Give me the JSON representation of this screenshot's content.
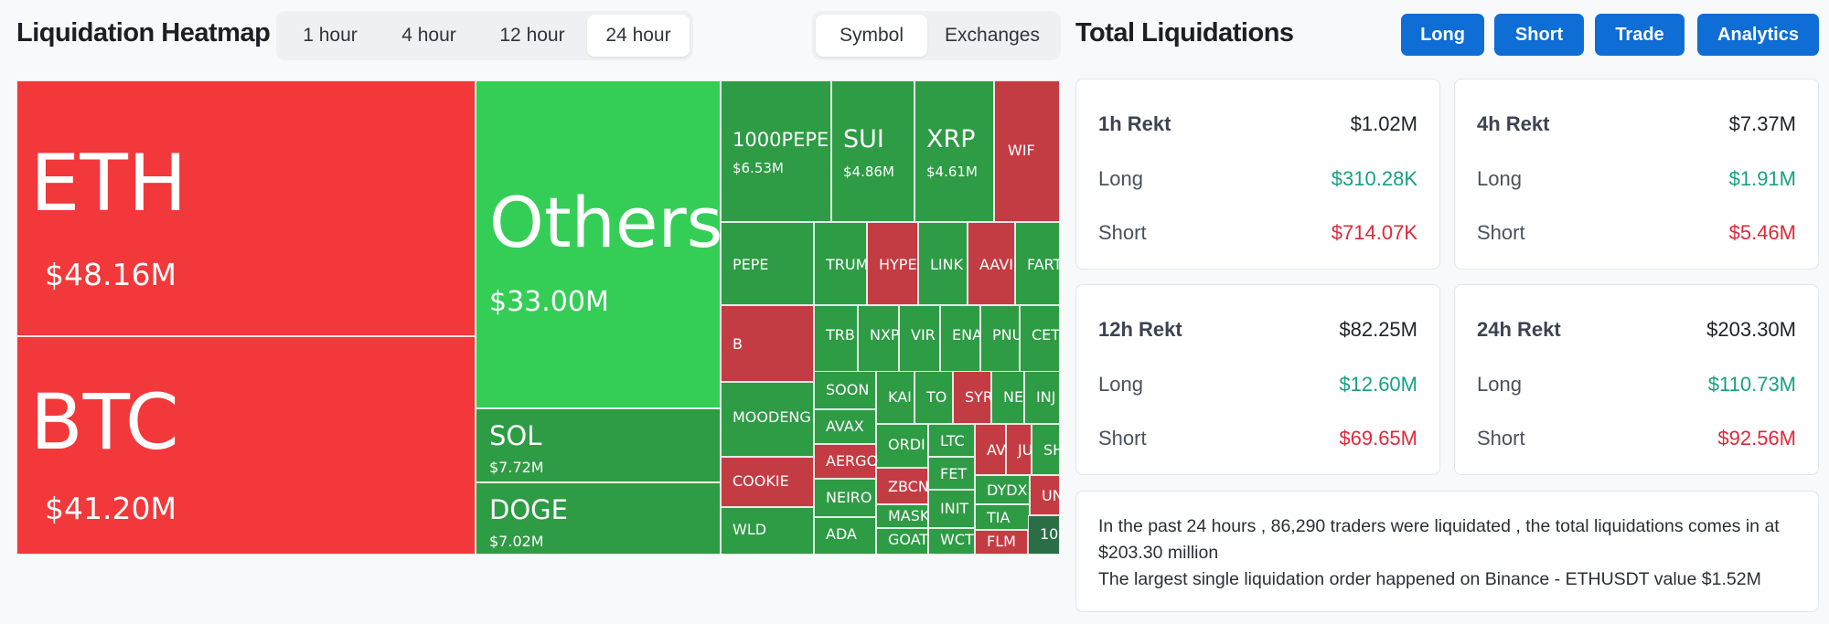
{
  "header": {
    "title": "Liquidation Heatmap",
    "time_tabs": [
      "1 hour",
      "4 hour",
      "12 hour",
      "24 hour"
    ],
    "active_time_tab": "24 hour",
    "view_tabs": [
      "Symbol",
      "Exchanges"
    ],
    "active_view_tab": "Symbol"
  },
  "heatmap": {
    "cells": [
      {
        "symbol": "ETH",
        "value": "$48.16M"
      },
      {
        "symbol": "BTC",
        "value": "$41.20M"
      },
      {
        "symbol": "Others",
        "value": "$33.00M"
      },
      {
        "symbol": "SOL",
        "value": "$7.72M"
      },
      {
        "symbol": "DOGE",
        "value": "$7.02M"
      },
      {
        "symbol": "1000PEPE",
        "value": "$6.53M"
      },
      {
        "symbol": "SUI",
        "value": "$4.86M"
      },
      {
        "symbol": "XRP",
        "value": "$4.61M"
      },
      {
        "symbol": "WIF",
        "value": ""
      },
      {
        "symbol": "PEPE",
        "value": ""
      },
      {
        "symbol": "TRUM",
        "value": ""
      },
      {
        "symbol": "HYPE",
        "value": ""
      },
      {
        "symbol": "LINK",
        "value": ""
      },
      {
        "symbol": "AAVI",
        "value": ""
      },
      {
        "symbol": "FART",
        "value": ""
      },
      {
        "symbol": "B",
        "value": ""
      },
      {
        "symbol": "TRB",
        "value": ""
      },
      {
        "symbol": "NXP",
        "value": ""
      },
      {
        "symbol": "VIR",
        "value": ""
      },
      {
        "symbol": "ENA",
        "value": ""
      },
      {
        "symbol": "PNU",
        "value": ""
      },
      {
        "symbol": "CET",
        "value": ""
      },
      {
        "symbol": "MOODENG",
        "value": ""
      },
      {
        "symbol": "SOON",
        "value": ""
      },
      {
        "symbol": "KAI",
        "value": ""
      },
      {
        "symbol": "TO",
        "value": ""
      },
      {
        "symbol": "SYR",
        "value": ""
      },
      {
        "symbol": "NE",
        "value": ""
      },
      {
        "symbol": "INJ",
        "value": ""
      },
      {
        "symbol": "AVAX",
        "value": ""
      },
      {
        "symbol": "ORDI",
        "value": ""
      },
      {
        "symbol": "LTC",
        "value": ""
      },
      {
        "symbol": "AV",
        "value": ""
      },
      {
        "symbol": "JU",
        "value": ""
      },
      {
        "symbol": "SH",
        "value": ""
      },
      {
        "symbol": "COOKIE",
        "value": ""
      },
      {
        "symbol": "AERGO",
        "value": ""
      },
      {
        "symbol": "ZBCN",
        "value": ""
      },
      {
        "symbol": "FET",
        "value": ""
      },
      {
        "symbol": "DYDX",
        "value": ""
      },
      {
        "symbol": "UN",
        "value": ""
      },
      {
        "symbol": "NEIRO",
        "value": ""
      },
      {
        "symbol": "MASK",
        "value": ""
      },
      {
        "symbol": "INIT",
        "value": ""
      },
      {
        "symbol": "TIA",
        "value": ""
      },
      {
        "symbol": "WLD",
        "value": ""
      },
      {
        "symbol": "ADA",
        "value": ""
      },
      {
        "symbol": "GOAT",
        "value": ""
      },
      {
        "symbol": "WCT",
        "value": ""
      },
      {
        "symbol": "FLM",
        "value": ""
      },
      {
        "symbol": "10",
        "value": ""
      }
    ]
  },
  "right": {
    "title": "Total Liquidations",
    "buttons": [
      "Long",
      "Short",
      "Trade",
      "Analytics"
    ],
    "cards": [
      {
        "title": "1h Rekt",
        "total": "$1.02M",
        "long_label": "Long",
        "long": "$310.28K",
        "short_label": "Short",
        "short": "$714.07K"
      },
      {
        "title": "4h Rekt",
        "total": "$7.37M",
        "long_label": "Long",
        "long": "$1.91M",
        "short_label": "Short",
        "short": "$5.46M"
      },
      {
        "title": "12h Rekt",
        "total": "$82.25M",
        "long_label": "Long",
        "long": "$12.60M",
        "short_label": "Short",
        "short": "$69.65M"
      },
      {
        "title": "24h Rekt",
        "total": "$203.30M",
        "long_label": "Long",
        "long": "$110.73M",
        "short_label": "Short",
        "short": "$92.56M"
      }
    ],
    "summary": {
      "line1": "In the past 24 hours , 86,290 traders were liquidated , the total liquidations comes in at",
      "line2": "$203.30 million",
      "line3": "The largest single liquidation order happened on Binance - ETHUSDT value $1.52M"
    }
  },
  "colors": {
    "short_red": "#f2383a",
    "short_dark_red": "#c43c43",
    "long_green": "#34ce57",
    "long_dark_green": "#2e9b45",
    "accent_blue": "#0f6dd6",
    "positive_text": "#16a085",
    "negative_text": "#e0283a"
  }
}
